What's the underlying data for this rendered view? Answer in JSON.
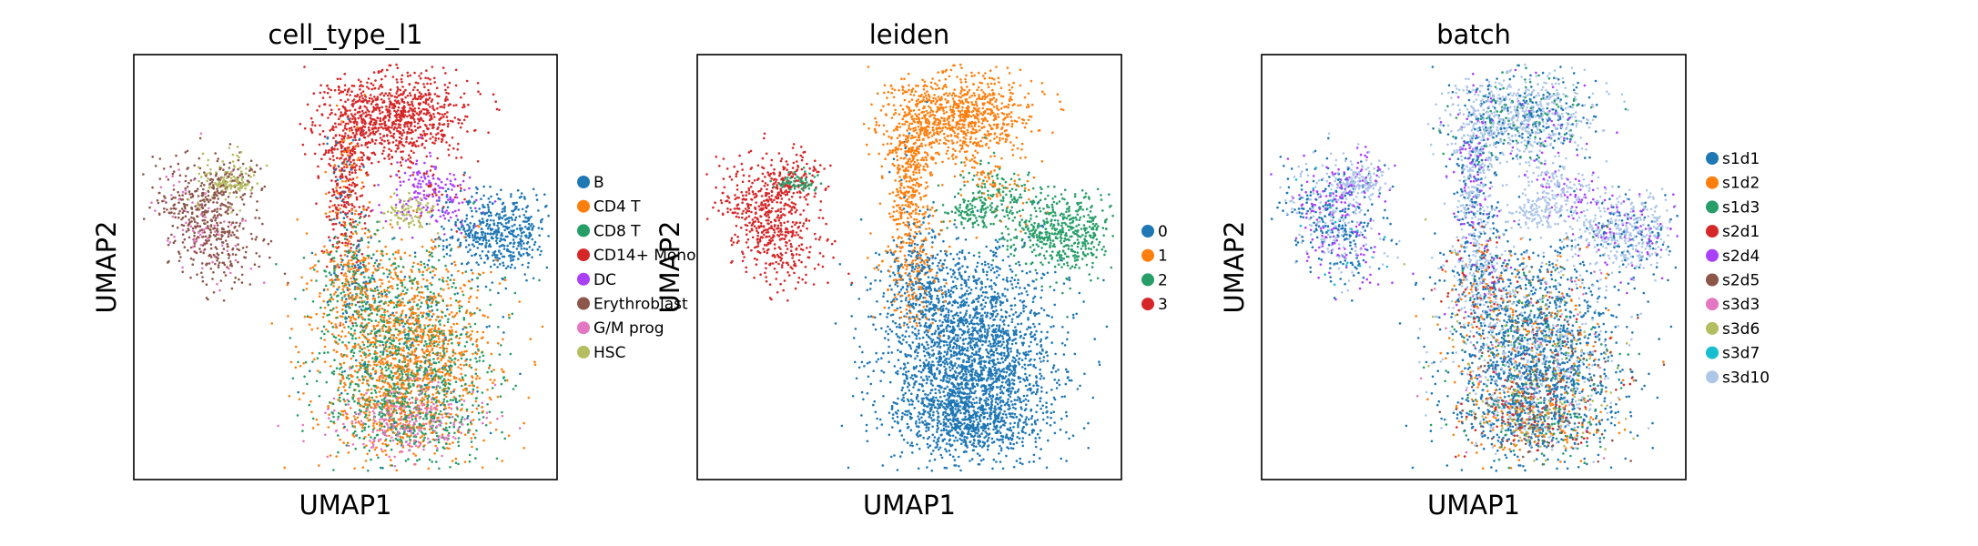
{
  "chart_data": [
    {
      "type": "scatter",
      "title": "cell_type_l1",
      "xlabel": "UMAP1",
      "ylabel": "UMAP2",
      "legend_position": "right",
      "categories": [
        "B",
        "CD4 T",
        "CD8 T",
        "CD14+ Mono",
        "DC",
        "Erythroblast",
        "G/M prog",
        "HSC"
      ],
      "colors": [
        "#1f77b4",
        "#ff7f0e",
        "#279e68",
        "#d62728",
        "#aa40fc",
        "#8c564b",
        "#e377c2",
        "#b5bd61"
      ]
    },
    {
      "type": "scatter",
      "title": "leiden",
      "xlabel": "UMAP1",
      "ylabel": "UMAP2",
      "legend_position": "right",
      "categories": [
        "0",
        "1",
        "2",
        "3"
      ],
      "colors": [
        "#1f77b4",
        "#ff7f0e",
        "#279e68",
        "#d62728"
      ]
    },
    {
      "type": "scatter",
      "title": "batch",
      "xlabel": "UMAP1",
      "ylabel": "UMAP2",
      "legend_position": "right",
      "categories": [
        "s1d1",
        "s1d2",
        "s1d3",
        "s2d1",
        "s2d4",
        "s2d5",
        "s3d3",
        "s3d6",
        "s3d7",
        "s3d10"
      ],
      "colors": [
        "#1f77b4",
        "#ff7f0e",
        "#279e68",
        "#d62728",
        "#aa40fc",
        "#8c564b",
        "#e377c2",
        "#b5bd61",
        "#17becf",
        "#aec7e8"
      ]
    }
  ]
}
